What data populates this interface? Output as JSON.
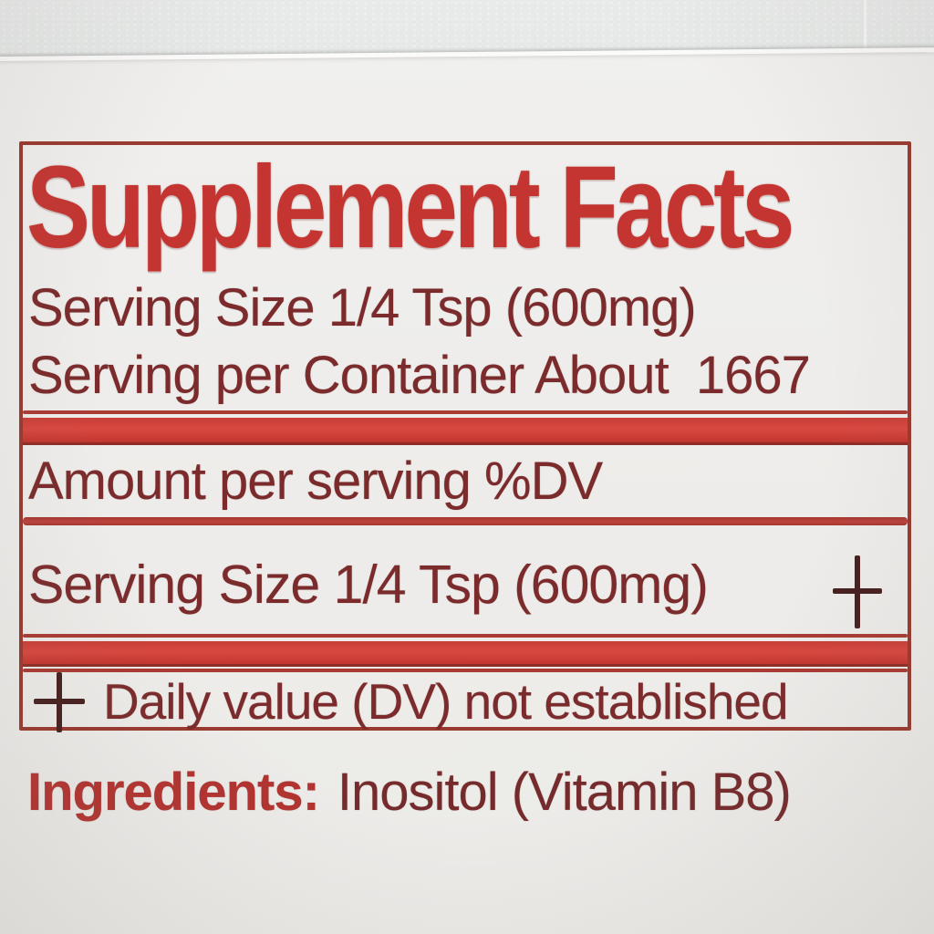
{
  "label": {
    "title": "Supplement Facts",
    "serving_size": "Serving Size 1/4 Tsp (600mg)",
    "servings_per_container": "Serving per Container About  1667",
    "columns": {
      "amount": "Amount per serving",
      "dv": "%DV"
    },
    "rows": [
      {
        "name": "Serving Size 1/4 Tsp (600mg)",
        "dv_symbol": "+"
      }
    ],
    "footnote_symbol": "+",
    "footnote": "Daily value (DV) not established",
    "ingredients_label": "Ingredients:",
    "ingredients_value": "Inositol (Vitamin B8)",
    "colors": {
      "accent_red": "#c43531",
      "bar_red": "#d84840",
      "text_maroon": "#7b2b2c",
      "border_red": "#9a392f",
      "paper": "#eeedeb",
      "wall": "#e4e7e6"
    }
  }
}
